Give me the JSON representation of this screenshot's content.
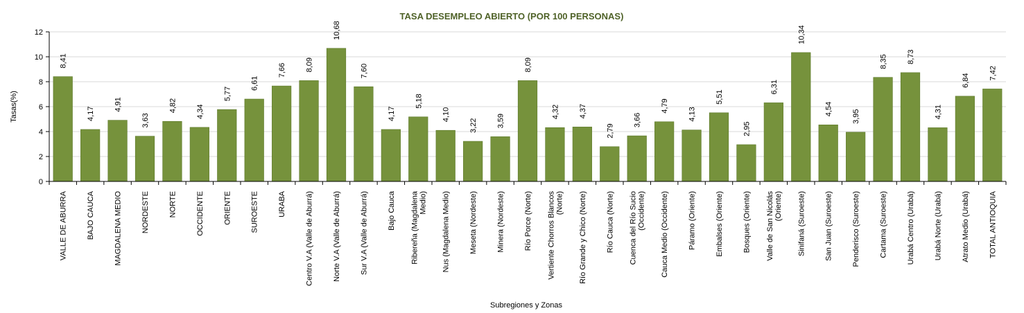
{
  "chart_data": {
    "type": "bar",
    "title": "TASA DESEMPLEO ABIERTO (POR 100 PERSONAS)",
    "xlabel": "Subregiones y Zonas",
    "ylabel": "Tasas(%)",
    "ylim": [
      0,
      12
    ],
    "yticks": [
      0,
      2,
      4,
      6,
      8,
      10,
      12
    ],
    "grid": true,
    "legend": "none",
    "colors": {
      "bar": "#76923C",
      "bar_edge": "#5E7A2C",
      "title": "#4F6228",
      "grid": "#D9D9D9"
    },
    "categories": [
      [
        "VALLE DE ABURRA"
      ],
      [
        "BAJO CAUCA"
      ],
      [
        "MAGDALENA MEDIO"
      ],
      [
        "NORDESTE"
      ],
      [
        "NORTE"
      ],
      [
        "OCCIDENTE"
      ],
      [
        "ORIENTE"
      ],
      [
        "SUROESTE"
      ],
      [
        "URABA"
      ],
      [
        "Centro V.A (Valle de Aburrá)"
      ],
      [
        "Norte V.A (Valle de Aburrá)"
      ],
      [
        "Sur V.A (Valle de Aburrá)"
      ],
      [
        "Bajo Cauca"
      ],
      [
        "Ribereña (Magdalena",
        "Medio)"
      ],
      [
        "Nus (Magdalena Medio)"
      ],
      [
        "Meseta (Nordeste)"
      ],
      [
        "Minera (Nordeste)"
      ],
      [
        "Río Porce (Norte)"
      ],
      [
        "Vertiente Chorros Blancos",
        "(Norte)"
      ],
      [
        "Río Grande y Chico (Norte)"
      ],
      [
        "Río Cauca (Norte)"
      ],
      [
        "Cuenca del Río Sucio",
        "(Occidente)"
      ],
      [
        "Cauca Medio (Occidente)"
      ],
      [
        "Páramo (Oriente)"
      ],
      [
        "Embalses (Oriente)"
      ],
      [
        "Bosques (Oriente)"
      ],
      [
        "Valle de San Nicolás",
        "(Oriente)"
      ],
      [
        "Sinifaná (Suroeste)"
      ],
      [
        "San Juan (Suroeste)"
      ],
      [
        "Penderisco (Suroeste)"
      ],
      [
        "Cartama (Suroeste)"
      ],
      [
        "Urabá Centro (Urabá)"
      ],
      [
        "Urabá Norte (Urabá)"
      ],
      [
        "Atrato Medio (Urabá)"
      ],
      [
        "TOTAL ANTIOQUIA"
      ]
    ],
    "values": [
      8.41,
      4.17,
      4.91,
      3.63,
      4.82,
      4.34,
      5.77,
      6.61,
      7.66,
      8.09,
      10.68,
      7.6,
      4.17,
      5.18,
      4.1,
      3.22,
      3.59,
      8.09,
      4.32,
      4.37,
      2.79,
      3.66,
      4.79,
      4.13,
      5.51,
      2.95,
      6.31,
      10.34,
      4.54,
      3.95,
      8.35,
      8.73,
      4.31,
      6.84,
      7.42
    ],
    "value_labels": [
      "8,41",
      "4,17",
      "4,91",
      "3,63",
      "4,82",
      "4,34",
      "5,77",
      "6,61",
      "7,66",
      "8,09",
      "10,68",
      "7,60",
      "4,17",
      "5,18",
      "4,10",
      "3,22",
      "3,59",
      "8,09",
      "4,32",
      "4,37",
      "2,79",
      "3,66",
      "4,79",
      "4,13",
      "5,51",
      "2,95",
      "6,31",
      "10,34",
      "4,54",
      "3,95",
      "8,35",
      "8,73",
      "4,31",
      "6,84",
      "7,42"
    ]
  }
}
